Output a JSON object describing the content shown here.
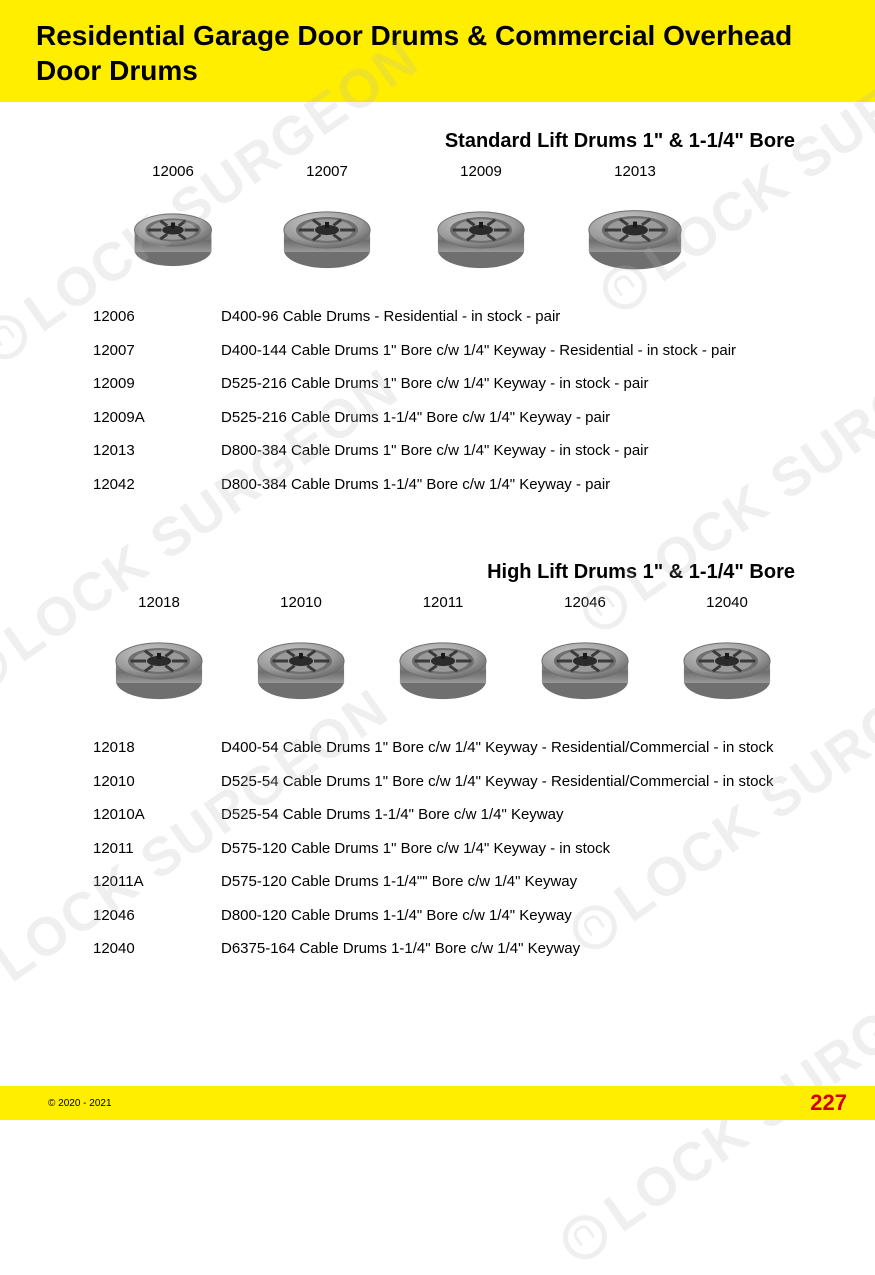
{
  "colors": {
    "header_bg": "#ffee00",
    "footer_bg": "#ffee00",
    "page_num": "#d40000",
    "text": "#000000",
    "watermark": "rgba(180,180,180,0.22)",
    "drum_light": "#c9c9c9",
    "drum_mid": "#9a9a9a",
    "drum_dark": "#6f6f6f"
  },
  "header": {
    "title": "Residential Garage Door Drums & Commercial Overhead Door Drums"
  },
  "watermark_text": "LOCK SURGEON",
  "section1": {
    "title": "Standard Lift Drums 1\" & 1-1/4\" Bore",
    "drums": [
      {
        "code": "12006"
      },
      {
        "code": "12007"
      },
      {
        "code": "12009"
      },
      {
        "code": "12013"
      }
    ],
    "specs": [
      {
        "code": "12006",
        "desc": "D400-96 Cable Drums - Residential - in stock - pair"
      },
      {
        "code": "12007",
        "desc": "D400-144 Cable Drums 1\" Bore c/w 1/4\" Keyway - Residential - in stock - pair"
      },
      {
        "code": "12009",
        "desc": "D525-216 Cable Drums 1\" Bore c/w 1/4\" Keyway - in stock - pair"
      },
      {
        "code": "12009A",
        "desc": "D525-216 Cable Drums 1-1/4\" Bore c/w 1/4\" Keyway - pair"
      },
      {
        "code": "12013",
        "desc": "D800-384 Cable Drums 1\" Bore c/w 1/4\" Keyway - in stock - pair"
      },
      {
        "code": "12042",
        "desc": "D800-384 Cable Drums 1-1/4\" Bore c/w 1/4\" Keyway  - pair"
      }
    ]
  },
  "section2": {
    "title": "High Lift Drums 1\" & 1-1/4\" Bore",
    "drums": [
      {
        "code": "12018"
      },
      {
        "code": "12010"
      },
      {
        "code": "12011"
      },
      {
        "code": "12046"
      },
      {
        "code": "12040"
      }
    ],
    "specs": [
      {
        "code": "12018",
        "desc": "D400-54 Cable Drums 1\" Bore c/w 1/4\" Keyway - Residential/Commercial - in stock"
      },
      {
        "code": "12010",
        "desc": "D525-54 Cable Drums 1\" Bore c/w 1/4\" Keyway - Residential/Commercial - in stock"
      },
      {
        "code": "12010A",
        "desc": "D525-54 Cable Drums 1-1/4\" Bore c/w 1/4\" Keyway"
      },
      {
        "code": "12011",
        "desc": "D575-120 Cable Drums 1\" Bore c/w 1/4\" Keyway - in stock"
      },
      {
        "code": "12011A",
        "desc": "D575-120 Cable Drums 1-1/4\"\" Bore c/w 1/4\" Keyway"
      },
      {
        "code": "12046",
        "desc": "D800-120 Cable Drums 1-1/4\" Bore c/w 1/4\" Keyway"
      },
      {
        "code": "12040",
        "desc": "D6375-164 Cable Drums 1-1/4\" Bore c/w 1/4\" Keyway"
      }
    ]
  },
  "footer": {
    "copyright": "© 2020 - 2021",
    "page": "227"
  }
}
